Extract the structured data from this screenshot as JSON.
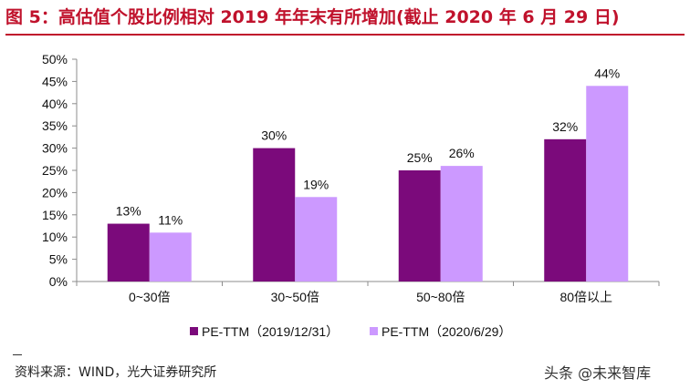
{
  "figure": {
    "title": "图 5：高估值个股比例相对 2019 年年末有所增加(截止 2020 年 6 月 29 日)",
    "source": "资料来源：WIND，光大证券研究所",
    "watermark": "头条 @未来智库"
  },
  "chart_data": {
    "type": "bar",
    "categories": [
      "0~30倍",
      "30~50倍",
      "50~80倍",
      "80倍以上"
    ],
    "series": [
      {
        "name": "PE-TTM（2019/12/31）",
        "values": [
          13,
          30,
          25,
          32
        ],
        "labels": [
          "13%",
          "30%",
          "25%",
          "32%"
        ],
        "color": "#7b0a7b"
      },
      {
        "name": "PE-TTM（2020/6/29）",
        "values": [
          11,
          19,
          26,
          44
        ],
        "labels": [
          "11%",
          "19%",
          "26%",
          "44%"
        ],
        "color": "#cc99ff"
      }
    ],
    "ylim": [
      0,
      50
    ],
    "yticks": [
      "0%",
      "5%",
      "10%",
      "15%",
      "20%",
      "25%",
      "30%",
      "35%",
      "40%",
      "45%",
      "50%"
    ],
    "legend_position": "bottom",
    "grid": false
  }
}
